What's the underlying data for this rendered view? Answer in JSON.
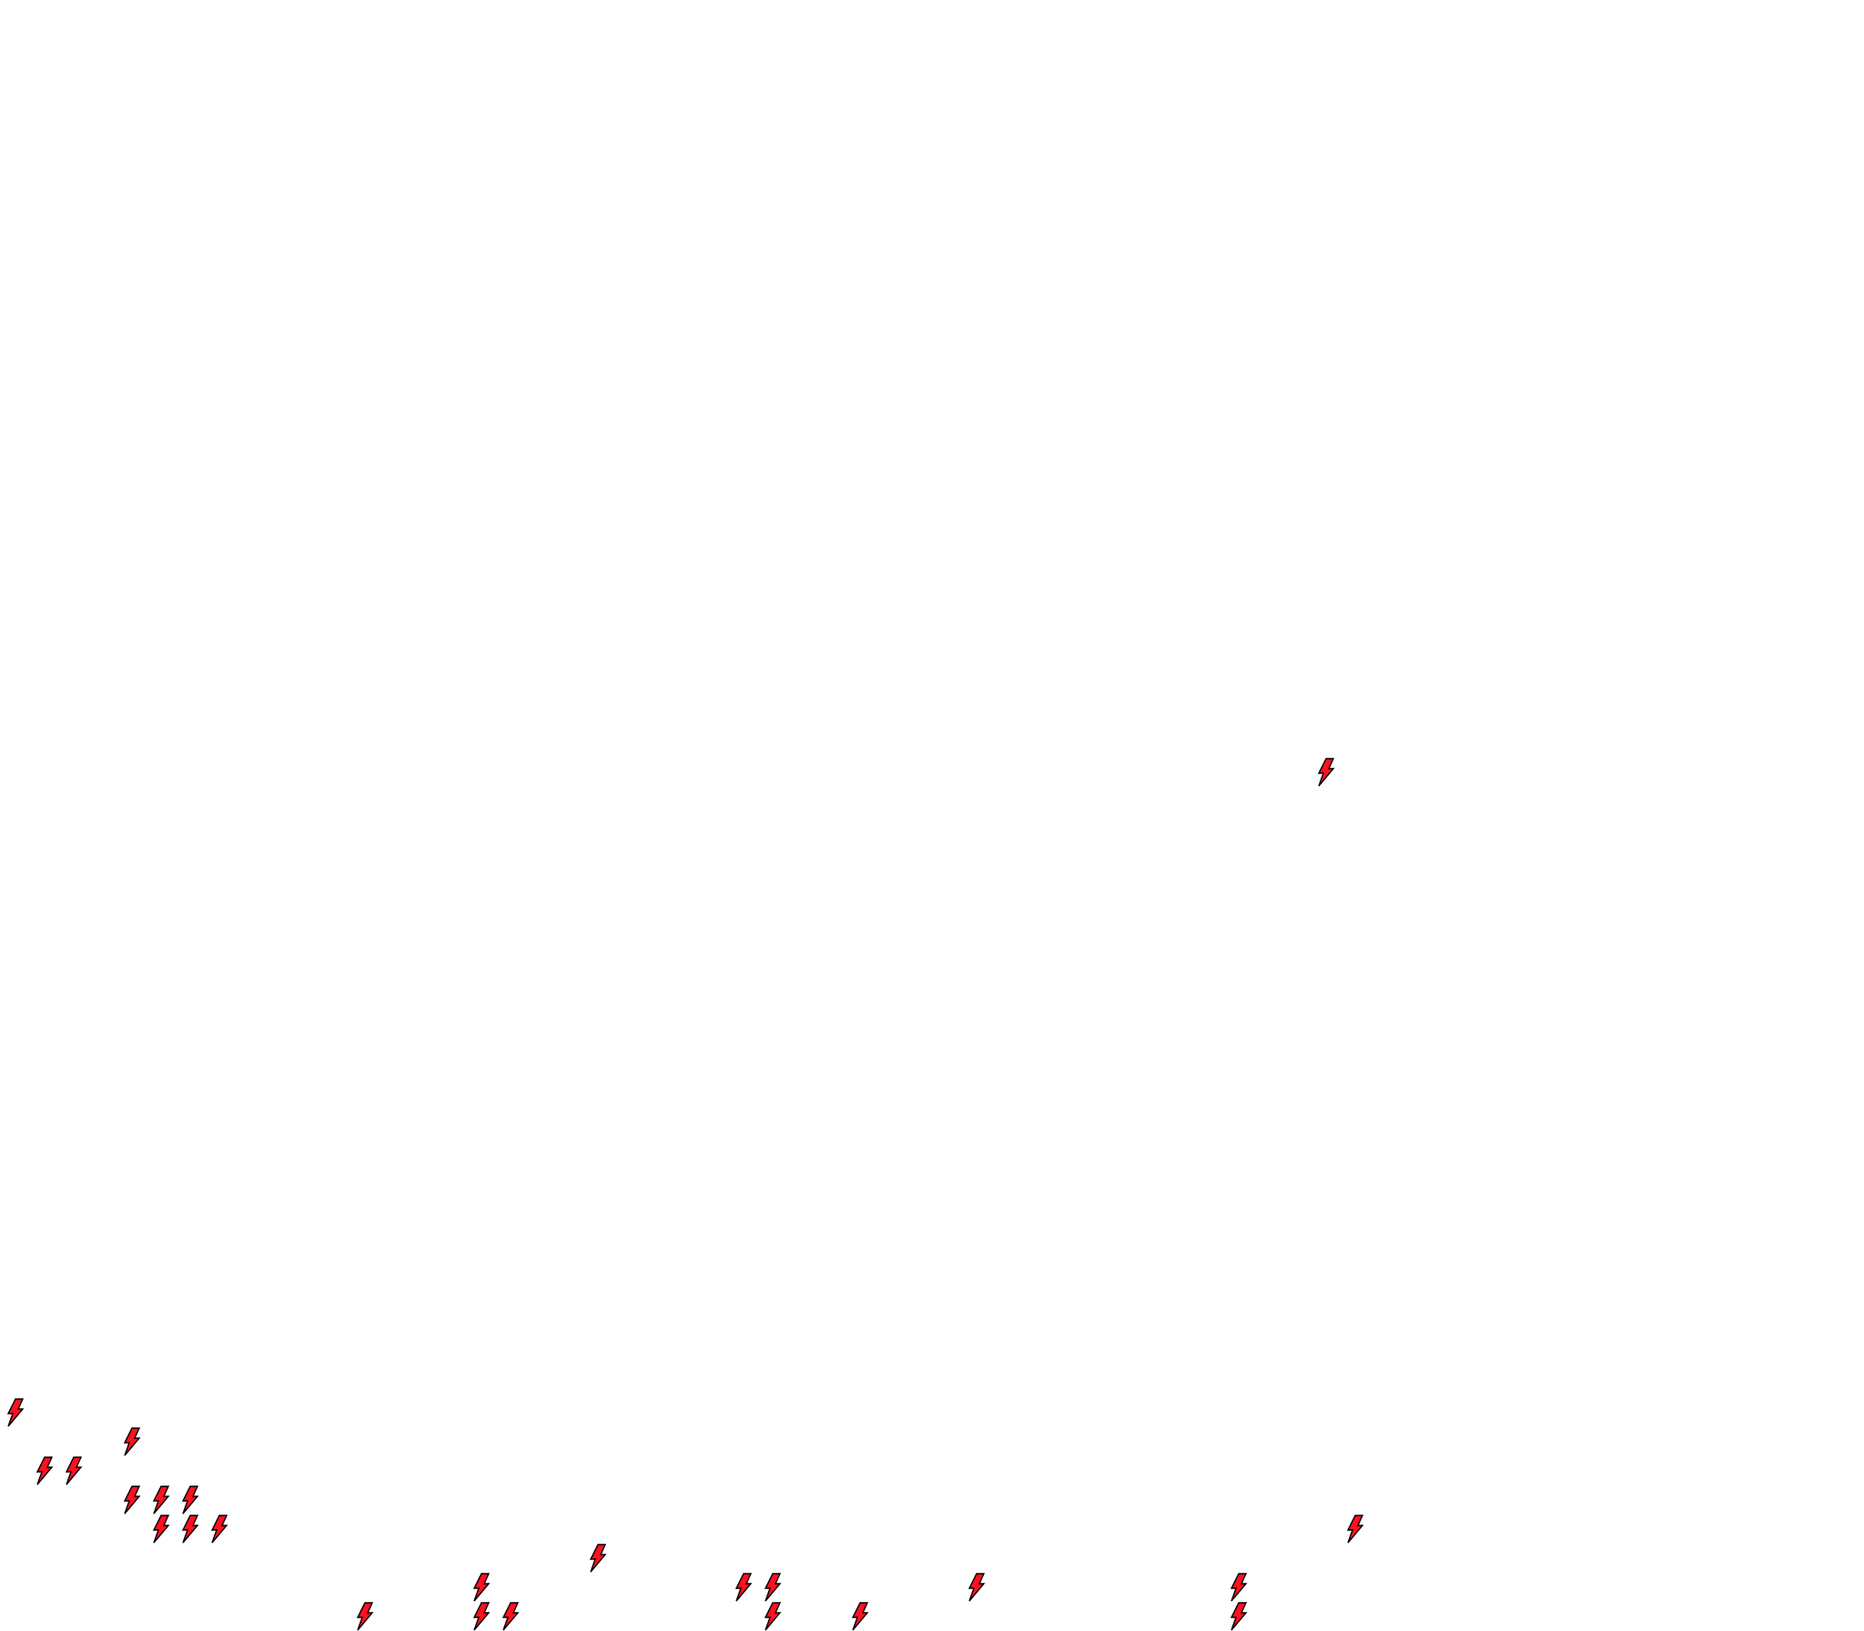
{
  "canvas": {
    "background_color": "#ffffff",
    "icon": {
      "name": "lightning-bolt-icon",
      "fill_color": "#ff1020",
      "stroke_color": "#000000"
    }
  }
}
